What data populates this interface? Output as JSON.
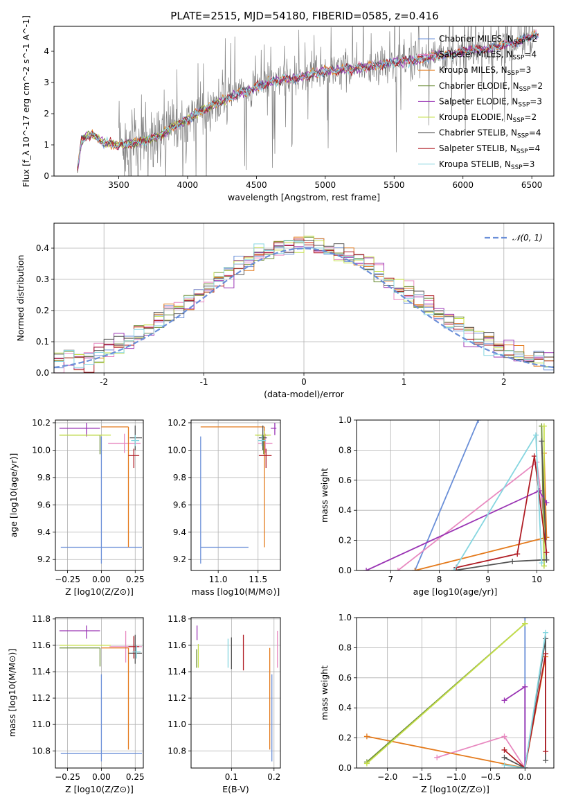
{
  "figure": {
    "title": "PLATE=2515, MJD=54180, FIBERID=0585, z=0.416"
  },
  "colors": {
    "chabrier_miles": "#6a8fd8",
    "salpeter_miles": "#e889c0",
    "kroupa_miles": "#e47a1c",
    "chabrier_elodie": "#6e8f3a",
    "salpeter_elodie": "#9a34b4",
    "kroupa_elodie": "#c6e04a",
    "chabrier_stelib": "#555555",
    "salpeter_stelib": "#b01c24",
    "kroupa_stelib": "#86d6e0",
    "data_spectrum": "#808080",
    "normal_curve": "#6a8fd8"
  },
  "chart_data": [
    {
      "type": "line",
      "id": "spectrum",
      "xlabel": "wavelength [Angstrom, rest frame]",
      "ylabel": "Flux [f_λ 10^-17 erg cm^-2 s^-1 A^-1]",
      "xlim": [
        3030,
        6660
      ],
      "ylim": [
        0,
        4.8
      ],
      "xticks": [
        3500,
        4000,
        4500,
        5000,
        5500,
        6000,
        6500
      ],
      "yticks": [
        0,
        1,
        2,
        3,
        4
      ],
      "legend": "top-right",
      "legend_entries": [
        "Chabrier MILES, N_SSP=2",
        "Salpeter MILES, N_SSP=4",
        "Kroupa MILES, N_SSP=3",
        "Chabrier ELODIE, N_SSP=2",
        "Salpeter ELODIE, N_SSP=3",
        "Kroupa ELODIE, N_SSP=2",
        "Chabrier STELIB, N_SSP=4",
        "Salpeter STELIB, N_SSP=4",
        "Kroupa STELIB, N_SSP=3"
      ],
      "model_curve": {
        "x": [
          3200,
          3230,
          3300,
          3400,
          3500,
          3600,
          3700,
          3800,
          3900,
          4000,
          4100,
          4200,
          4300,
          4400,
          4500,
          4600,
          4700,
          4800,
          4900,
          5000,
          5100,
          5200,
          5300,
          5400,
          5500,
          5600,
          5700,
          5800,
          5900,
          6000,
          6100,
          6200,
          6300,
          6400,
          6500
        ],
        "y": [
          0.2,
          1.15,
          1.35,
          1.05,
          1.0,
          1.05,
          1.15,
          1.3,
          1.6,
          1.8,
          2.1,
          2.3,
          2.5,
          2.7,
          2.85,
          3.0,
          3.1,
          3.15,
          3.25,
          3.35,
          3.4,
          3.45,
          3.5,
          3.55,
          3.65,
          3.7,
          3.75,
          3.85,
          3.9,
          4.0,
          4.05,
          4.1,
          4.2,
          4.3,
          4.5
        ]
      },
      "data_noise_start": 3500,
      "data_noise_end": 6520
    },
    {
      "type": "bar",
      "id": "residuals",
      "xlabel": "(data-model)/error",
      "ylabel": "Normed distribution",
      "xlim": [
        -2.5,
        2.5
      ],
      "ylim": [
        0,
        0.48
      ],
      "xticks": [
        -2,
        -1,
        0,
        1,
        2
      ],
      "yticks": [
        0.0,
        0.1,
        0.2,
        0.3,
        0.4
      ],
      "legend": "top-right",
      "legend_entries": [
        "𝒩(0, 1)"
      ],
      "bin_width": 0.1,
      "bin_start": -2.6
    },
    {
      "type": "scatter",
      "id": "age-vs-z",
      "xlabel": "Z [log10(Z/Z⊙)]",
      "ylabel": "age  [log10(age/yr)]",
      "xlim": [
        -0.34,
        0.31
      ],
      "ylim": [
        9.12,
        10.22
      ],
      "xticks": [
        -0.25,
        0.0,
        0.25
      ],
      "xticklabels": [
        "−0.25",
        "0.00",
        "0.25"
      ],
      "yticks": [
        9.2,
        9.4,
        9.6,
        9.8,
        10.0,
        10.2
      ],
      "points": [
        {
          "series": "chabrier_miles",
          "x": 0.0,
          "y": 9.29,
          "xerr": [
            0.3,
            0.3
          ],
          "yerr": [
            0.12,
            0.81
          ]
        },
        {
          "series": "salpeter_miles",
          "x": 0.17,
          "y": 10.05,
          "xerr": [
            0.12,
            0.12
          ],
          "yerr": [
            0.07,
            0.07
          ]
        },
        {
          "series": "kroupa_miles",
          "x": 0.2,
          "y": 10.17,
          "xerr": [
            0.2,
            0.0
          ],
          "yerr": [
            0.88,
            0.0
          ]
        },
        {
          "series": "chabrier_elodie",
          "x": -0.01,
          "y": 10.11,
          "xerr": [
            0.3,
            0.0
          ],
          "yerr": [
            0.14,
            0.0
          ]
        },
        {
          "series": "salpeter_elodie",
          "x": -0.11,
          "y": 10.16,
          "xerr": [
            0.2,
            0.1
          ],
          "yerr": [
            0.06,
            0.04
          ]
        },
        {
          "series": "kroupa_elodie",
          "x": -0.01,
          "y": 10.11,
          "xerr": [
            0.3,
            0.08
          ],
          "yerr": [
            0.0,
            0.0
          ]
        },
        {
          "series": "chabrier_stelib",
          "x": 0.25,
          "y": 10.09,
          "xerr": [
            0.04,
            0.05
          ],
          "yerr": [
            0.09,
            0.09
          ]
        },
        {
          "series": "salpeter_stelib",
          "x": 0.24,
          "y": 9.96,
          "xerr": [
            0.04,
            0.04
          ],
          "yerr": [
            0.09,
            0.05
          ]
        },
        {
          "series": "kroupa_stelib",
          "x": 0.25,
          "y": 10.07,
          "xerr": [
            0.03,
            0.03
          ],
          "yerr": [
            0.04,
            0.04
          ]
        }
      ]
    },
    {
      "type": "scatter",
      "id": "age-vs-mass",
      "xlabel": "mass [log10(M/M⊙)]",
      "ylabel": "",
      "xlim": [
        10.66,
        11.78
      ],
      "ylim": [
        9.12,
        10.22
      ],
      "xticks": [
        11.0,
        11.5
      ],
      "xticklabels": [
        "11.0",
        "11.5"
      ],
      "yticks": [
        9.2,
        9.4,
        9.6,
        9.8,
        10.0,
        10.2
      ],
      "points": [
        {
          "series": "chabrier_miles",
          "x": 10.78,
          "y": 9.29,
          "xerr": [
            0.0,
            0.6
          ],
          "yerr": [
            0.12,
            0.81
          ]
        },
        {
          "series": "salpeter_miles",
          "x": 11.59,
          "y": 10.05,
          "xerr": [
            0.09,
            0.09
          ],
          "yerr": [
            0.07,
            0.07
          ]
        },
        {
          "series": "kroupa_miles",
          "x": 11.58,
          "y": 10.17,
          "xerr": [
            0.8,
            0.0
          ],
          "yerr": [
            0.88,
            0.0
          ]
        },
        {
          "series": "chabrier_elodie",
          "x": 11.57,
          "y": 10.11,
          "xerr": [
            0.09,
            0.06
          ],
          "yerr": [
            0.14,
            0.0
          ]
        },
        {
          "series": "salpeter_elodie",
          "x": 11.71,
          "y": 10.16,
          "xerr": [
            0.05,
            0.02
          ],
          "yerr": [
            0.05,
            0.04
          ]
        },
        {
          "series": "kroupa_elodie",
          "x": 11.58,
          "y": 10.11,
          "xerr": [
            0.12,
            0.08
          ],
          "yerr": [
            0.03,
            0.03
          ]
        },
        {
          "series": "chabrier_stelib",
          "x": 11.56,
          "y": 10.09,
          "xerr": [
            0.05,
            0.05
          ],
          "yerr": [
            0.09,
            0.09
          ]
        },
        {
          "series": "salpeter_stelib",
          "x": 11.6,
          "y": 9.96,
          "xerr": [
            0.09,
            0.07
          ],
          "yerr": [
            0.09,
            0.05
          ]
        },
        {
          "series": "kroupa_stelib",
          "x": 11.55,
          "y": 10.07,
          "xerr": [
            0.05,
            0.05
          ],
          "yerr": [
            0.04,
            0.04
          ]
        }
      ]
    },
    {
      "type": "line",
      "id": "mass-weight-vs-age",
      "xlabel": "age  [log10(age/yr)]",
      "ylabel": "mass weight",
      "xlim": [
        6.3,
        10.35
      ],
      "ylim": [
        0,
        1.0
      ],
      "xticks": [
        7,
        8,
        9,
        10
      ],
      "yticks": [
        0.0,
        0.2,
        0.4,
        0.6,
        0.8,
        1.0
      ],
      "series": [
        {
          "name": "chabrier_miles",
          "points": [
            [
              7.5,
              0.0
            ],
            [
              8.8,
              1.0
            ]
          ]
        },
        {
          "name": "salpeter_miles",
          "points": [
            [
              7.15,
              0.0
            ],
            [
              10.0,
              0.72
            ],
            [
              10.2,
              0.22
            ]
          ]
        },
        {
          "name": "kroupa_miles",
          "points": [
            [
              7.5,
              0.0
            ],
            [
              10.2,
              0.22
            ],
            [
              10.15,
              0.78
            ]
          ]
        },
        {
          "name": "chabrier_elodie",
          "points": [
            [
              10.1,
              0.96
            ],
            [
              10.15,
              0.03
            ]
          ]
        },
        {
          "name": "salpeter_elodie",
          "points": [
            [
              6.5,
              0.0
            ],
            [
              10.05,
              0.53
            ],
            [
              10.2,
              0.45
            ]
          ]
        },
        {
          "name": "kroupa_elodie",
          "points": [
            [
              10.15,
              0.96
            ],
            [
              10.15,
              0.03
            ]
          ]
        },
        {
          "name": "chabrier_stelib",
          "points": [
            [
              8.3,
              0.0
            ],
            [
              9.5,
              0.06
            ],
            [
              10.1,
              0.07
            ],
            [
              10.2,
              0.07
            ],
            [
              10.1,
              0.86
            ]
          ]
        },
        {
          "name": "salpeter_stelib",
          "points": [
            [
              8.35,
              0.02
            ],
            [
              9.6,
              0.11
            ],
            [
              9.95,
              0.76
            ],
            [
              10.2,
              0.12
            ]
          ]
        },
        {
          "name": "kroupa_stelib",
          "points": [
            [
              8.3,
              0.0
            ],
            [
              9.98,
              0.9
            ],
            [
              10.1,
              0.05
            ]
          ]
        }
      ]
    },
    {
      "type": "scatter",
      "id": "mass-vs-z",
      "xlabel": "Z [log10(Z/Z⊙)]",
      "ylabel": "mass [log10(M/M⊙)]",
      "xlim": [
        -0.34,
        0.31
      ],
      "ylim": [
        10.67,
        11.81
      ],
      "xticks": [
        -0.25,
        0.0,
        0.25
      ],
      "xticklabels": [
        "−0.25",
        "0.00",
        "0.25"
      ],
      "yticks": [
        10.8,
        11.0,
        11.2,
        11.4,
        11.6,
        11.8
      ],
      "points": [
        {
          "series": "chabrier_miles",
          "x": 0.0,
          "y": 10.78,
          "xerr": [
            0.3,
            0.3
          ],
          "yerr": [
            0.06,
            0.6
          ]
        },
        {
          "series": "salpeter_miles",
          "x": 0.18,
          "y": 11.59,
          "xerr": [
            0.12,
            0.12
          ],
          "yerr": [
            0.12,
            0.12
          ]
        },
        {
          "series": "kroupa_miles",
          "x": 0.2,
          "y": 11.58,
          "xerr": [
            0.2,
            0.0
          ],
          "yerr": [
            0.77,
            0.0
          ]
        },
        {
          "series": "chabrier_elodie",
          "x": -0.01,
          "y": 11.58,
          "xerr": [
            0.3,
            0.0
          ],
          "yerr": [
            0.14,
            0.0
          ]
        },
        {
          "series": "salpeter_elodie",
          "x": -0.11,
          "y": 11.71,
          "xerr": [
            0.2,
            0.1
          ],
          "yerr": [
            0.06,
            0.04
          ]
        },
        {
          "series": "kroupa_elodie",
          "x": -0.01,
          "y": 11.6,
          "xerr": [
            0.3,
            0.08
          ],
          "yerr": [
            0.0,
            0.0
          ]
        },
        {
          "series": "chabrier_stelib",
          "x": 0.25,
          "y": 11.54,
          "xerr": [
            0.05,
            0.05
          ],
          "yerr": [
            0.08,
            0.14
          ]
        },
        {
          "series": "salpeter_stelib",
          "x": 0.24,
          "y": 11.59,
          "xerr": [
            0.04,
            0.04
          ],
          "yerr": [
            0.09,
            0.08
          ]
        },
        {
          "series": "kroupa_stelib",
          "x": 0.26,
          "y": 11.55,
          "xerr": [
            0.03,
            0.03
          ],
          "yerr": [
            0.05,
            0.05
          ]
        }
      ]
    },
    {
      "type": "scatter",
      "id": "mass-vs-ebv",
      "xlabel": "E(B-V)",
      "ylabel": "",
      "xlim": [
        0.005,
        0.215
      ],
      "ylim": [
        10.67,
        11.81
      ],
      "xticks": [
        0.1,
        0.2
      ],
      "xticklabels": [
        "0.1",
        "0.2"
      ],
      "yticks": [
        10.8,
        11.0,
        11.2,
        11.4,
        11.6,
        11.8
      ],
      "points": [
        {
          "series": "chabrier_miles",
          "x": 0.195,
          "y": 10.78,
          "xerr": [
            0,
            0
          ],
          "yerr": [
            0.06,
            0.6
          ]
        },
        {
          "series": "salpeter_miles",
          "x": 0.208,
          "y": 11.58,
          "xerr": [
            0,
            0
          ],
          "yerr": [
            0.15,
            0.13
          ]
        },
        {
          "series": "kroupa_miles",
          "x": 0.19,
          "y": 11.58,
          "xerr": [
            0,
            0
          ],
          "yerr": [
            0.77,
            0.0
          ]
        },
        {
          "series": "chabrier_elodie",
          "x": 0.018,
          "y": 11.57,
          "xerr": [
            0,
            0
          ],
          "yerr": [
            0.14,
            0.0
          ]
        },
        {
          "series": "salpeter_elodie",
          "x": 0.019,
          "y": 11.7,
          "xerr": [
            0,
            0
          ],
          "yerr": [
            0.06,
            0.05
          ]
        },
        {
          "series": "kroupa_elodie",
          "x": 0.022,
          "y": 11.55,
          "xerr": [
            0,
            0
          ],
          "yerr": [
            0.12,
            0.06
          ]
        },
        {
          "series": "chabrier_stelib",
          "x": 0.1,
          "y": 11.53,
          "xerr": [
            0,
            0
          ],
          "yerr": [
            0.11,
            0.13
          ]
        },
        {
          "series": "salpeter_stelib",
          "x": 0.128,
          "y": 11.55,
          "xerr": [
            0,
            0
          ],
          "yerr": [
            0.14,
            0.13
          ]
        },
        {
          "series": "kroupa_stelib",
          "x": 0.092,
          "y": 11.55,
          "xerr": [
            0,
            0
          ],
          "yerr": [
            0.12,
            0.1
          ]
        }
      ]
    },
    {
      "type": "line",
      "id": "mass-weight-vs-z",
      "xlabel": "Z [log10(Z/Z⊙)]",
      "ylabel": "mass weight",
      "xlim": [
        -2.45,
        0.42
      ],
      "ylim": [
        0,
        1.0
      ],
      "xticks": [
        -2.0,
        -1.5,
        -1.0,
        -0.5,
        0.0
      ],
      "xticklabels": [
        "−2.0",
        "−1.5",
        "−1.0",
        "−0.5",
        "0.0"
      ],
      "yticks": [
        0.0,
        0.2,
        0.4,
        0.6,
        0.8,
        1.0
      ],
      "series": [
        {
          "name": "chabrier_miles",
          "points": [
            [
              0.0,
              1.0
            ],
            [
              0.0,
              0.0
            ]
          ]
        },
        {
          "name": "salpeter_miles",
          "points": [
            [
              -1.28,
              0.07
            ],
            [
              -0.3,
              0.21
            ],
            [
              0.0,
              0.0
            ]
          ]
        },
        {
          "name": "kroupa_miles",
          "points": [
            [
              -2.3,
              0.21
            ],
            [
              0.0,
              0.0
            ],
            [
              0.3,
              0.74
            ]
          ]
        },
        {
          "name": "chabrier_elodie",
          "points": [
            [
              -2.3,
              0.04
            ],
            [
              0.0,
              0.96
            ]
          ]
        },
        {
          "name": "salpeter_elodie",
          "points": [
            [
              -0.3,
              0.45
            ],
            [
              0.0,
              0.54
            ],
            [
              0.0,
              0.0
            ]
          ]
        },
        {
          "name": "kroupa_elodie",
          "points": [
            [
              -2.3,
              0.03
            ],
            [
              0.0,
              0.96
            ]
          ]
        },
        {
          "name": "chabrier_stelib",
          "points": [
            [
              -0.3,
              0.07
            ],
            [
              0.0,
              0.0
            ],
            [
              0.3,
              0.86
            ],
            [
              0.3,
              0.05
            ]
          ]
        },
        {
          "name": "salpeter_stelib",
          "points": [
            [
              -0.3,
              0.12
            ],
            [
              0.0,
              0.0
            ],
            [
              0.3,
              0.76
            ],
            [
              0.3,
              0.11
            ]
          ]
        },
        {
          "name": "kroupa_stelib",
          "points": [
            [
              -0.3,
              0.02
            ],
            [
              0.0,
              0.0
            ],
            [
              0.3,
              0.9
            ]
          ]
        }
      ]
    }
  ]
}
